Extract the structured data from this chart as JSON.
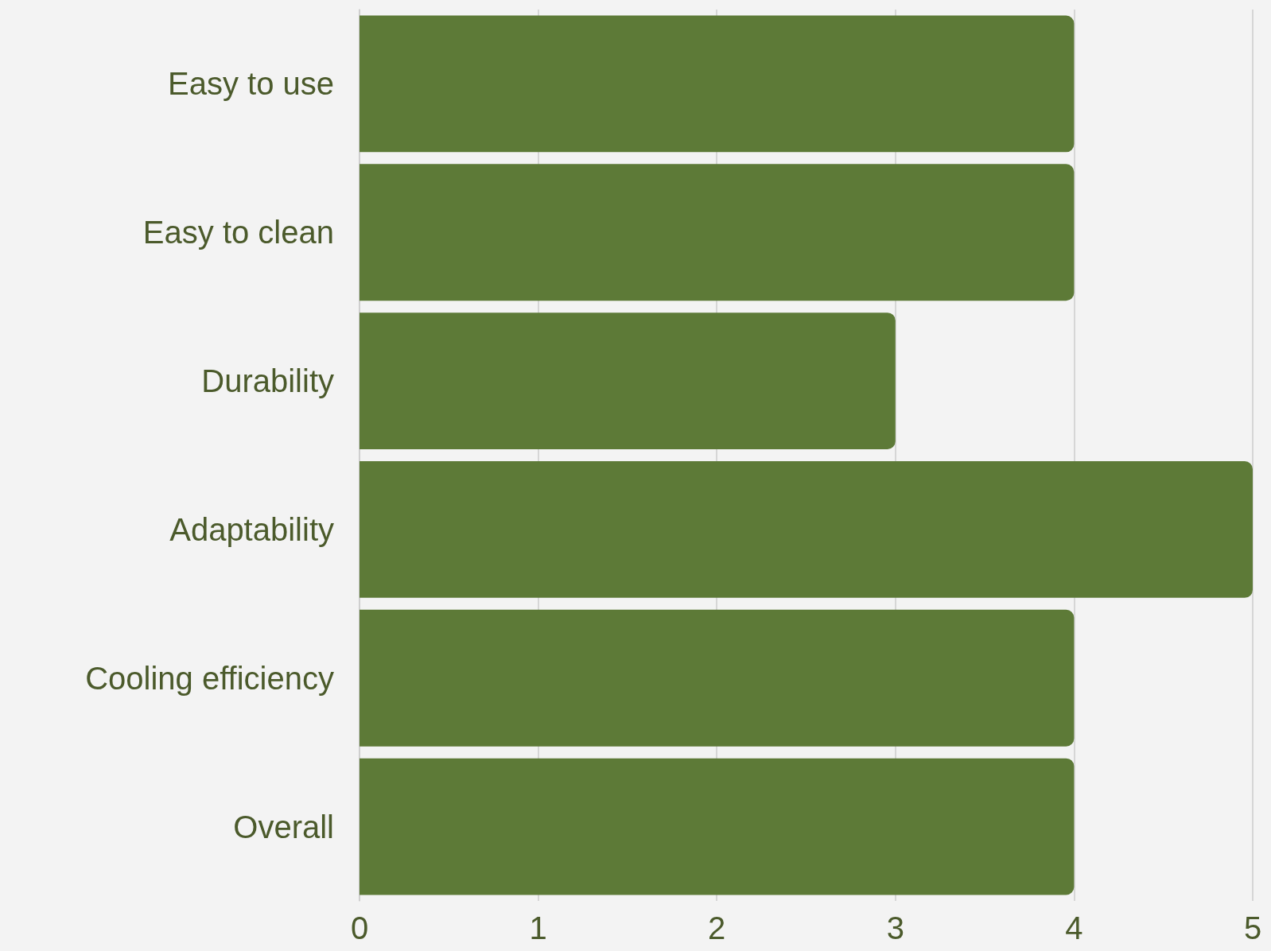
{
  "chart_data": {
    "type": "bar",
    "orientation": "horizontal",
    "categories": [
      "Easy to use",
      "Easy to clean",
      "Durability",
      "Adaptability",
      "Cooling efficiency",
      "Overall"
    ],
    "values": [
      4,
      4,
      3,
      5,
      4,
      4
    ],
    "color": "#5d7a37",
    "xlim": [
      0,
      5
    ],
    "xticks": [
      0,
      1,
      2,
      3,
      4,
      5
    ],
    "grid": "x"
  }
}
